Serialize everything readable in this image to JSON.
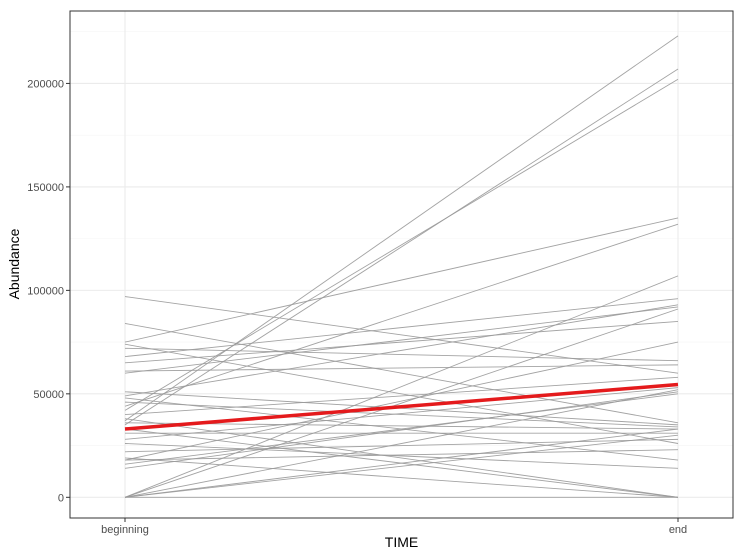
{
  "chart_data": {
    "type": "line",
    "xlabel": "TIME",
    "ylabel": "Abundance",
    "categories": [
      "beginning",
      "end"
    ],
    "ylim": [
      -10000,
      235000
    ],
    "yticks": [
      0,
      50000,
      100000,
      150000,
      200000
    ],
    "ytick_labels": [
      "0",
      "50000",
      "100000",
      "150000",
      "200000"
    ],
    "grid": true,
    "legend": "none",
    "colors": {
      "series": "#999999",
      "mean": "#e41a1c",
      "panel_border": "#333333",
      "grid_major": "#ebebeb",
      "grid_minor": "#f5f5f5"
    },
    "series": [
      {
        "values": [
          37000,
          223000
        ]
      },
      {
        "values": [
          35000,
          207000
        ]
      },
      {
        "values": [
          42000,
          202000
        ]
      },
      {
        "values": [
          75000,
          135000
        ]
      },
      {
        "values": [
          44000,
          132000
        ]
      },
      {
        "values": [
          0,
          107000
        ]
      },
      {
        "values": [
          68000,
          96000
        ]
      },
      {
        "values": [
          49000,
          93000
        ]
      },
      {
        "values": [
          60000,
          92000
        ]
      },
      {
        "values": [
          0,
          91000
        ]
      },
      {
        "values": [
          65000,
          85000
        ]
      },
      {
        "values": [
          18000,
          75000
        ]
      },
      {
        "values": [
          72000,
          66000
        ]
      },
      {
        "values": [
          61000,
          64000
        ]
      },
      {
        "values": [
          97000,
          60000
        ]
      },
      {
        "values": [
          40000,
          58000
        ]
      },
      {
        "values": [
          28000,
          53000
        ]
      },
      {
        "values": [
          0,
          52000
        ]
      },
      {
        "values": [
          14000,
          51000
        ]
      },
      {
        "values": [
          16000,
          50000
        ]
      },
      {
        "values": [
          84000,
          36000
        ]
      },
      {
        "values": [
          51000,
          35000
        ]
      },
      {
        "values": [
          46000,
          34000
        ]
      },
      {
        "values": [
          36000,
          33000
        ]
      },
      {
        "values": [
          0,
          33000
        ]
      },
      {
        "values": [
          31000,
          31000
        ]
      },
      {
        "values": [
          0,
          30000
        ]
      },
      {
        "values": [
          22000,
          28000
        ]
      },
      {
        "values": [
          74000,
          26000
        ]
      },
      {
        "values": [
          18000,
          23000
        ]
      },
      {
        "values": [
          48000,
          18000
        ]
      },
      {
        "values": [
          26000,
          14000
        ]
      },
      {
        "values": [
          38000,
          0
        ]
      },
      {
        "values": [
          33000,
          0
        ]
      },
      {
        "values": [
          19000,
          0
        ]
      },
      {
        "values": [
          0,
          0
        ]
      }
    ],
    "mean_series": {
      "values": [
        33000,
        54500
      ]
    }
  }
}
